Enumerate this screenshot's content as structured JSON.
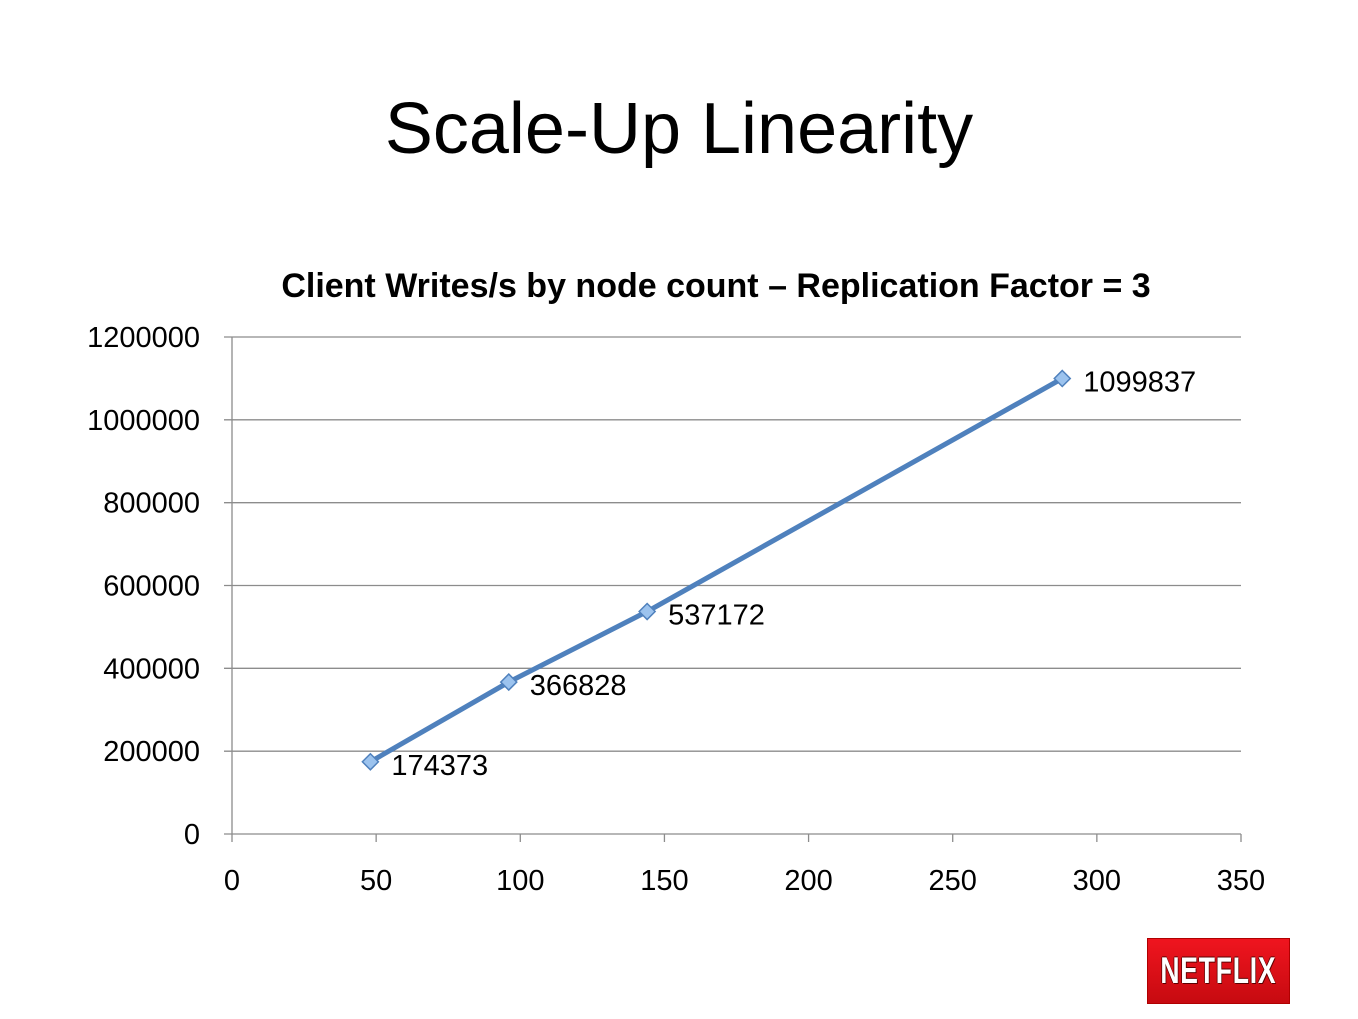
{
  "slide": {
    "title": "Scale-Up Linearity"
  },
  "chart_data": {
    "type": "line",
    "title": "Client Writes/s by node count – Replication Factor = 3",
    "xlabel": "",
    "ylabel": "",
    "xlim": [
      0,
      350
    ],
    "ylim": [
      0,
      1200000
    ],
    "x_ticks": [
      "0",
      "50",
      "100",
      "150",
      "200",
      "250",
      "300",
      "350"
    ],
    "y_ticks": [
      "0",
      "200000",
      "400000",
      "600000",
      "800000",
      "1000000",
      "1200000"
    ],
    "grid": "horizontal",
    "legend": "none",
    "series": [
      {
        "x": [
          48,
          96,
          144,
          288
        ],
        "values": [
          174373,
          366828,
          537172,
          1099837
        ],
        "labels": [
          "174373",
          "366828",
          "537172",
          "1099837"
        ],
        "color": "#4f81bd"
      }
    ]
  },
  "logo": {
    "text": "NETFLIX",
    "color": "#e50914"
  }
}
